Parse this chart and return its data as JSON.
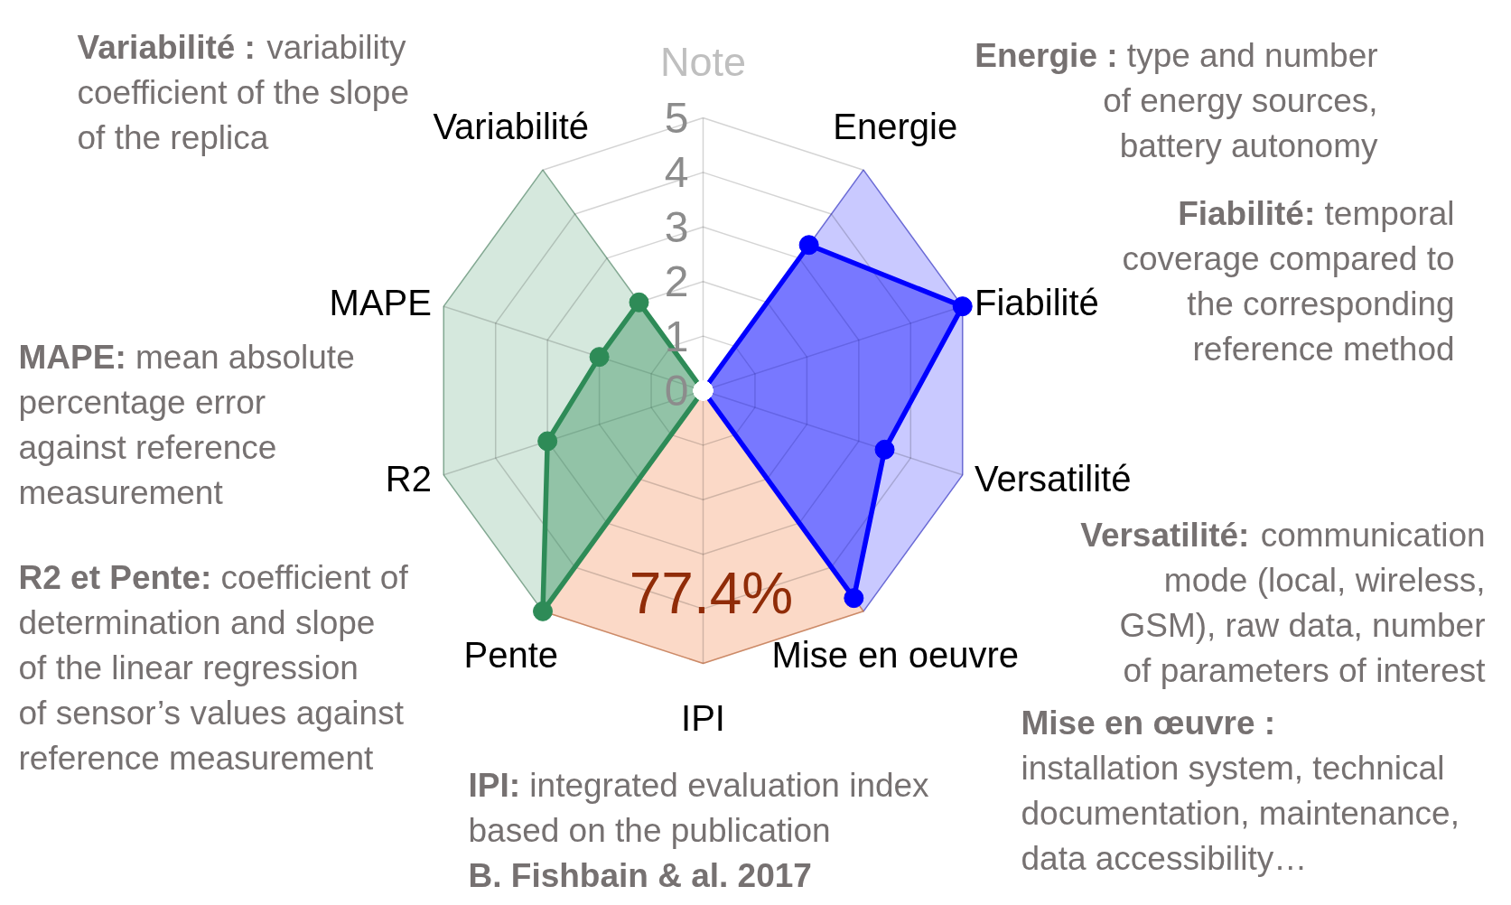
{
  "chart_data": {
    "type": "radar",
    "categories": [
      "Note",
      "Energie",
      "Fiabilité",
      "Versatilité",
      "Mise en oeuvre",
      "IPI",
      "Pente",
      "R2",
      "MAPE",
      "Variabilité"
    ],
    "ylim": [
      0,
      5
    ],
    "yticks": [
      0,
      1,
      2,
      3,
      4,
      5
    ],
    "grid": true,
    "series": [
      {
        "type": "area",
        "marker": "none",
        "color": "#d5e8dd",
        "values": [
          0,
          0,
          0,
          0,
          0,
          0,
          5,
          5,
          5,
          5
        ]
      },
      {
        "type": "area",
        "marker": "none",
        "color": "#c9c9ff",
        "values": [
          0,
          5,
          5,
          5,
          5,
          0,
          0,
          0,
          0,
          0
        ]
      },
      {
        "type": "area",
        "marker": "none",
        "color": "#fbd9c7",
        "values": [
          0,
          0,
          0,
          0,
          5,
          5,
          5,
          0,
          0,
          0
        ]
      },
      {
        "marker": "circle",
        "color": "#0000ff",
        "values": [
          0,
          3.3,
          5,
          3.5,
          4.7,
          0,
          0,
          0,
          0,
          0
        ]
      },
      {
        "marker": "circle",
        "color": "#2e8b57",
        "values": [
          0,
          0,
          0,
          0,
          0,
          0,
          5,
          3,
          2,
          2
        ]
      }
    ],
    "annotations": [
      "Variabilité : variability\ncoefficient of the slope\nof the replica",
      "Energie : type and number\nof energy sources,\nbattery autonomy",
      "MAPE: mean absolute\npercentage error\nagainst reference\nmeasurement",
      "Fiabilité: temporal\ncoverage compared to\nthe corresponding\nreference method",
      "Versatilité: communication\nmode (local, wireless,\nGSM), raw data, number\nof parameters of interest",
      "R2 et Pente: coefficient of\ndetermination and slope\nof the linear regression\nof sensor’s values against\nreference measurement",
      "77.4%",
      "Mise en œuvre :\ninstallation system, technical\ndocumentation, maintenance,\ndata accessibility…",
      "IPI: integrated evaluation index\nbased on the publication",
      "B. Fishbain & al. 2017"
    ]
  }
}
